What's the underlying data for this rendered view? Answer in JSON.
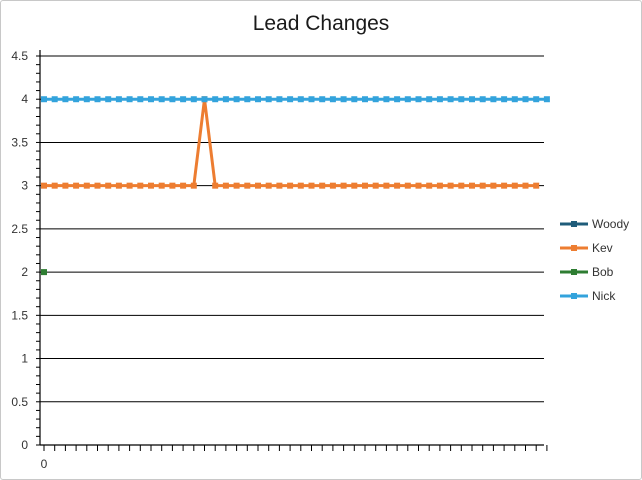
{
  "chart_data": {
    "type": "line",
    "title": "Lead Changes",
    "xlabel": "",
    "ylabel": "",
    "ylim": [
      0,
      4.5
    ],
    "y_ticks": [
      "0",
      "0.5",
      "1",
      "1.5",
      "2",
      "2.5",
      "3",
      "3.5",
      "4",
      "4.5"
    ],
    "x_tick_labels": [
      "0"
    ],
    "grid": true,
    "legend_position": "right",
    "series": [
      {
        "name": "Woody",
        "color": "#1f5c7a",
        "values": []
      },
      {
        "name": "Kev",
        "color": "#ed7d31",
        "values": [
          3,
          3,
          3,
          3,
          3,
          3,
          3,
          3,
          3,
          3,
          3,
          3,
          3,
          3,
          3,
          4,
          3,
          3,
          3,
          3,
          3,
          3,
          3,
          3,
          3,
          3,
          3,
          3,
          3,
          3,
          3,
          3,
          3,
          3,
          3,
          3,
          3,
          3,
          3,
          3,
          3,
          3,
          3,
          3,
          3,
          3,
          3
        ]
      },
      {
        "name": "Bob",
        "color": "#2e7d32",
        "values": [
          2
        ]
      },
      {
        "name": "Nick",
        "color": "#33a3dc",
        "values": [
          4,
          4,
          4,
          4,
          4,
          4,
          4,
          4,
          4,
          4,
          4,
          4,
          4,
          4,
          4,
          4,
          4,
          4,
          4,
          4,
          4,
          4,
          4,
          4,
          4,
          4,
          4,
          4,
          4,
          4,
          4,
          4,
          4,
          4,
          4,
          4,
          4,
          4,
          4,
          4,
          4,
          4,
          4,
          4,
          4,
          4,
          4,
          4
        ]
      }
    ]
  }
}
